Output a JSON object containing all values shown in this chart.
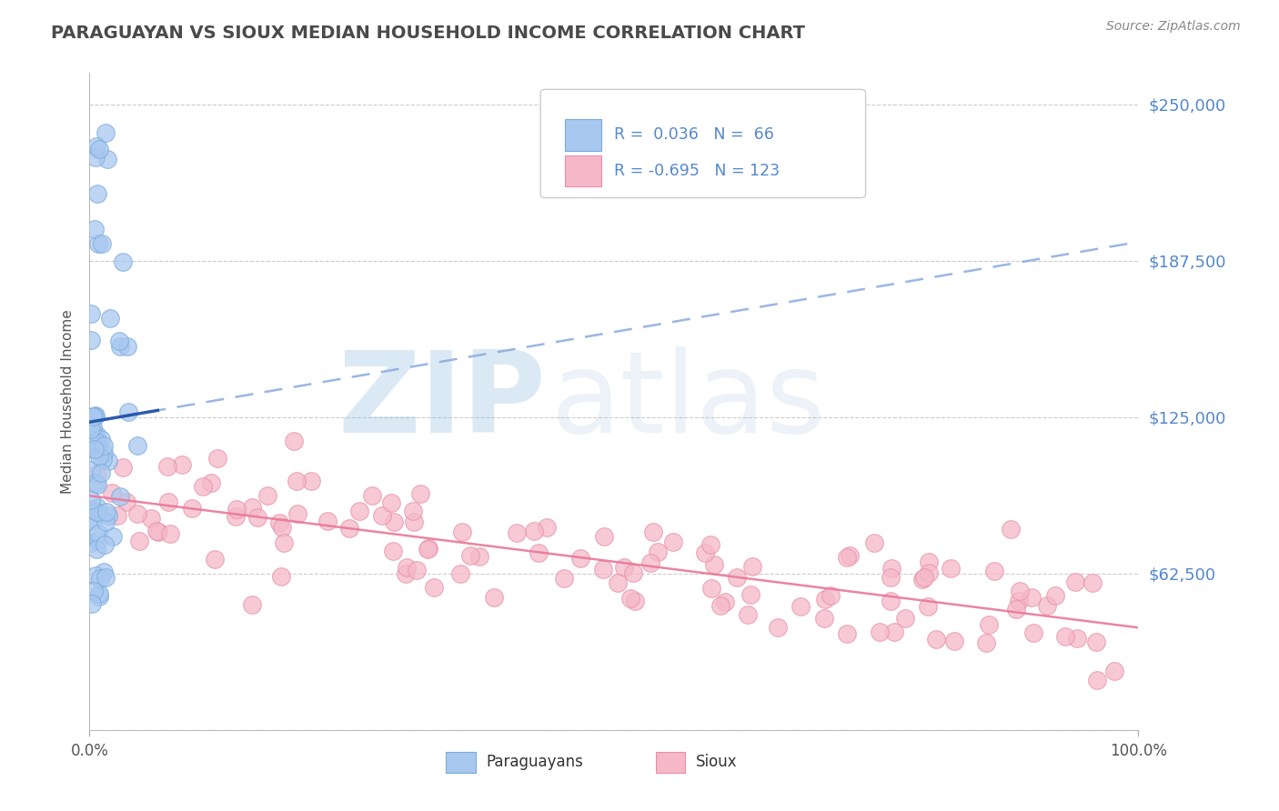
{
  "title": "PARAGUAYAN VS SIOUX MEDIAN HOUSEHOLD INCOME CORRELATION CHART",
  "source_text": "Source: ZipAtlas.com",
  "ylabel": "Median Household Income",
  "yticks": [
    0,
    62500,
    125000,
    187500,
    250000
  ],
  "ytick_labels": [
    "",
    "$62,500",
    "$125,000",
    "$187,500",
    "$250,000"
  ],
  "xlim": [
    0,
    1.0
  ],
  "ylim": [
    0,
    262500
  ],
  "xtick_vals": [
    0.0,
    1.0
  ],
  "xtick_labels": [
    "0.0%",
    "100.0%"
  ],
  "title_color": "#4a4a4a",
  "title_fontsize": 14,
  "background_color": "#ffffff",
  "grid_color": "#cccccc",
  "watermark_zip": "ZIP",
  "watermark_atlas": "atlas",
  "watermark_color": "#c5d9ee",
  "paraguayan_color": "#a8c8f0",
  "paraguayan_edge": "#7aaada",
  "sioux_color": "#f5b8c8",
  "sioux_edge": "#e890a8",
  "legend_paraguayan_label": "Paraguayans",
  "legend_sioux_label": "Sioux",
  "r_paraguayan": 0.036,
  "n_paraguayan": 66,
  "r_sioux": -0.695,
  "n_sioux": 123,
  "regression_blue_color": "#88aadd",
  "regression_pink_color": "#e87898",
  "ytick_color": "#5588cc",
  "source_color": "#888888"
}
